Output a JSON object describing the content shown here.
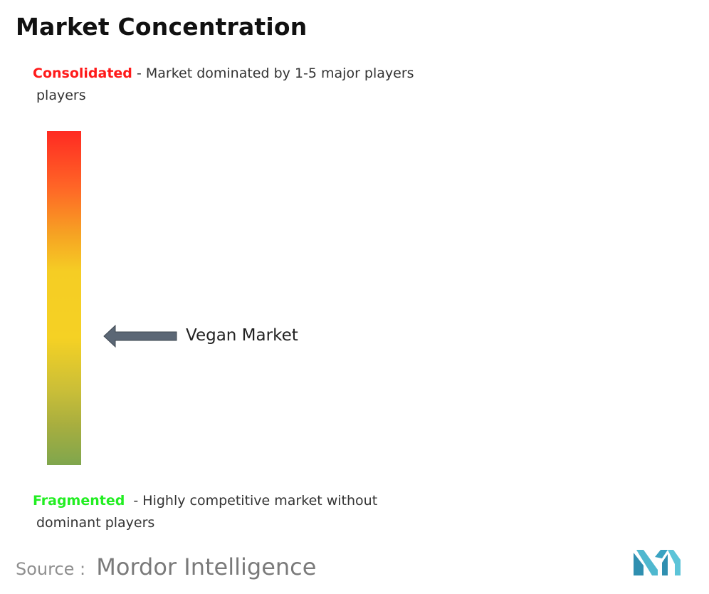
{
  "title": "Market Concentration",
  "legend": {
    "consolidated": {
      "key": "Consolidated",
      "description": "- Market dominated by 1-5 major players",
      "continuation": "players",
      "color": "#ff1a1a"
    },
    "fragmented": {
      "key": "Fragmented",
      "description": "- Highly competitive market without",
      "continuation": "dominant players",
      "color": "#22ee22"
    }
  },
  "scale": {
    "top_color": "#ff2a22",
    "middle_color": "#f5cd24",
    "bottom_color": "#7fa64d"
  },
  "marker": {
    "label": "Vegan Market",
    "icon": "left-arrow-icon",
    "arrow_color": "#5b6775"
  },
  "source": {
    "label": "Source :",
    "name": "Mordor Intelligence",
    "logo_icon": "mordor-intelligence-logo-icon",
    "logo_color": "#4fb8cf"
  }
}
